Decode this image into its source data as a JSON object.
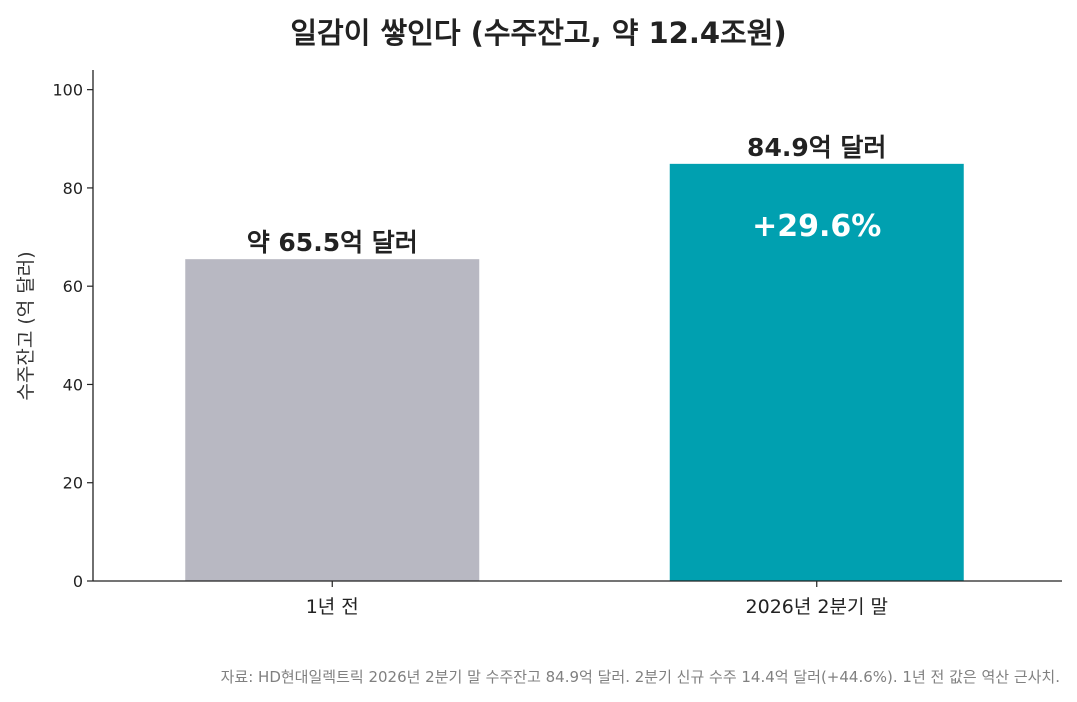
{
  "chart_data": {
    "type": "bar",
    "title": "일감이 쌓인다 (수주잔고, 약 12.4조원)",
    "ylabel": "수주잔고 (억 달러)",
    "xlabel": "",
    "categories": [
      "1년 전",
      "2026년 2분기 말"
    ],
    "values": [
      65.5,
      84.9
    ],
    "bar_colors": [
      "#b8b8c2",
      "#00a0b0"
    ],
    "data_labels": [
      "약 65.5억 달러",
      "84.9억 달러"
    ],
    "inner_annotation": "+29.6%",
    "ylim": [
      0,
      104
    ],
    "yticks": [
      0,
      20,
      40,
      60,
      80,
      100
    ],
    "grid": false,
    "legend": "none"
  },
  "footnote": "자료: HD현대일렉트릭 2026년 2분기 말 수주잔고 84.9억 달러. 2분기 신규 수주 14.4억 달러(+44.6%). 1년 전 값은 역산 근사치."
}
